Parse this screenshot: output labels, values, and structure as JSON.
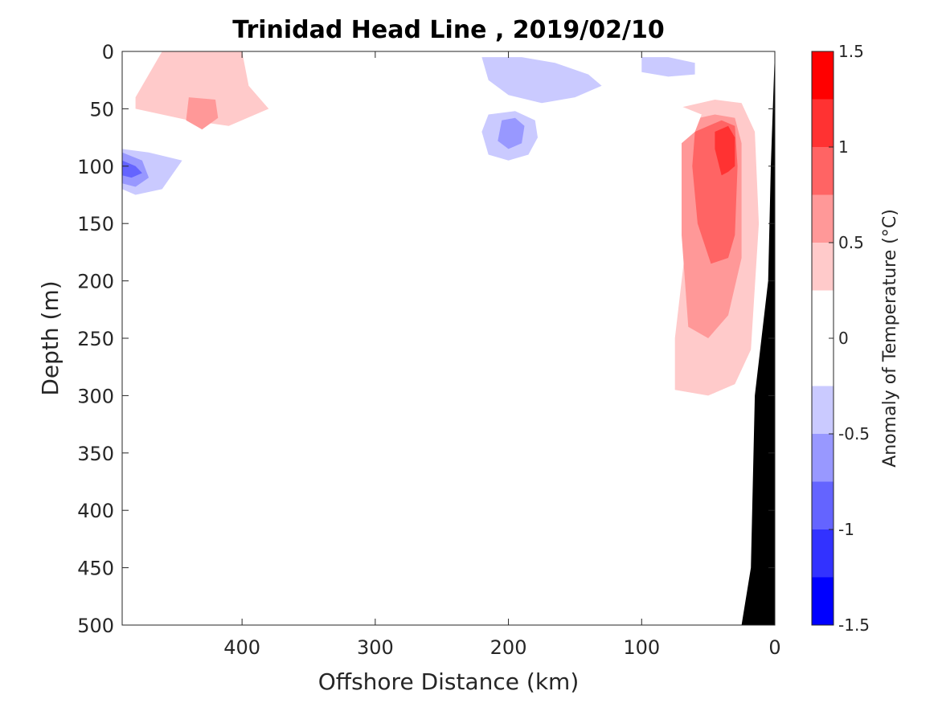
{
  "chart_data": {
    "type": "heatmap",
    "title": "Trinidad Head Line , 2019/02/10",
    "xlabel": "Offshore Distance (km)",
    "ylabel": "Depth (m)",
    "xlim": [
      490,
      0
    ],
    "ylim": [
      0,
      500
    ],
    "x_reversed": true,
    "y_reversed": true,
    "x_ticks": [
      "400",
      "300",
      "200",
      "100",
      "0"
    ],
    "x_tick_values": [
      400,
      300,
      200,
      100,
      0
    ],
    "y_ticks": [
      "0",
      "50",
      "100",
      "150",
      "200",
      "250",
      "300",
      "350",
      "400",
      "450",
      "500"
    ],
    "y_tick_values": [
      0,
      50,
      100,
      150,
      200,
      250,
      300,
      350,
      400,
      450,
      500
    ],
    "colorbar": {
      "label": "Anomaly of Temperature (°C)",
      "range": [
        -1.5,
        1.5
      ],
      "ticks": [
        "1.5",
        "1",
        "0.5",
        "0",
        "-0.5",
        "-1",
        "-1.5"
      ],
      "tick_values": [
        1.5,
        1,
        0.5,
        0,
        -0.5,
        -1,
        -1.5
      ],
      "levels": [
        -1.5,
        -1.25,
        -1.0,
        -0.75,
        -0.5,
        -0.25,
        0.25,
        0.5,
        0.75,
        1.0,
        1.25,
        1.5
      ],
      "colors": [
        "#0000ff",
        "#3232ff",
        "#6464ff",
        "#9898ff",
        "#cacaff",
        "#ffffff",
        "#ffcaca",
        "#ff9898",
        "#ff6464",
        "#ff3232",
        "#ff0000"
      ]
    },
    "anomaly_regions": [
      {
        "level": 0.25,
        "polygon": [
          [
            490,
            0
          ],
          [
            400,
            0
          ],
          [
            390,
            20
          ],
          [
            370,
            40
          ],
          [
            330,
            50
          ],
          [
            300,
            55
          ],
          [
            290,
            75
          ],
          [
            310,
            80
          ],
          [
            340,
            75
          ],
          [
            380,
            78
          ],
          [
            420,
            80
          ],
          [
            460,
            78
          ],
          [
            490,
            70
          ]
        ]
      },
      {
        "level": 0.5,
        "polygon": [
          [
            460,
            0
          ],
          [
            400,
            0
          ],
          [
            395,
            30
          ],
          [
            380,
            50
          ],
          [
            410,
            65
          ],
          [
            440,
            60
          ],
          [
            480,
            50
          ],
          [
            480,
            40
          ]
        ]
      },
      {
        "level": 0.75,
        "polygon": [
          [
            440,
            40
          ],
          [
            420,
            42
          ],
          [
            418,
            58
          ],
          [
            430,
            68
          ],
          [
            442,
            60
          ]
        ]
      },
      {
        "level": 0.25,
        "polygon": [
          [
            290,
            40
          ],
          [
            280,
            35
          ],
          [
            265,
            45
          ],
          [
            275,
            60
          ],
          [
            290,
            55
          ]
        ]
      },
      {
        "level": 0.25,
        "polygon": [
          [
            340,
            160
          ],
          [
            330,
            155
          ],
          [
            322,
            160
          ],
          [
            318,
            190
          ],
          [
            330,
            230
          ],
          [
            340,
            235
          ],
          [
            345,
            200
          ]
        ]
      },
      {
        "level": 0.25,
        "polygon": [
          [
            160,
            60
          ],
          [
            120,
            55
          ],
          [
            70,
            45
          ],
          [
            35,
            38
          ],
          [
            25,
            40
          ],
          [
            10,
            80
          ],
          [
            8,
            150
          ],
          [
            10,
            250
          ],
          [
            20,
            280
          ],
          [
            40,
            300
          ],
          [
            60,
            350
          ],
          [
            80,
            360
          ],
          [
            100,
            375
          ],
          [
            130,
            380
          ],
          [
            150,
            400
          ],
          [
            155,
            440
          ],
          [
            160,
            470
          ],
          [
            175,
            500
          ],
          [
            180,
            500
          ],
          [
            190,
            500
          ],
          [
            195,
            480
          ],
          [
            195,
            400
          ],
          [
            190,
            320
          ],
          [
            185,
            280
          ],
          [
            175,
            230
          ],
          [
            160,
            160
          ],
          [
            170,
            140
          ],
          [
            165,
            110
          ],
          [
            150,
            95
          ]
        ]
      },
      {
        "level": 0.5,
        "polygon": [
          [
            130,
            75
          ],
          [
            115,
            70
          ],
          [
            105,
            80
          ],
          [
            108,
            100
          ],
          [
            120,
            110
          ],
          [
            135,
            100
          ]
        ]
      },
      {
        "level": 0.5,
        "polygon": [
          [
            75,
            50
          ],
          [
            45,
            42
          ],
          [
            25,
            45
          ],
          [
            15,
            70
          ],
          [
            12,
            150
          ],
          [
            18,
            260
          ],
          [
            30,
            290
          ],
          [
            50,
            300
          ],
          [
            75,
            295
          ],
          [
            75,
            250
          ],
          [
            65,
            150
          ],
          [
            70,
            80
          ]
        ]
      },
      {
        "level": 0.75,
        "polygon": [
          [
            65,
            60
          ],
          [
            45,
            55
          ],
          [
            30,
            58
          ],
          [
            25,
            80
          ],
          [
            25,
            180
          ],
          [
            35,
            230
          ],
          [
            50,
            250
          ],
          [
            65,
            240
          ],
          [
            70,
            160
          ],
          [
            70,
            80
          ]
        ]
      },
      {
        "level": 1.0,
        "polygon": [
          [
            60,
            70
          ],
          [
            40,
            60
          ],
          [
            30,
            65
          ],
          [
            28,
            100
          ],
          [
            30,
            160
          ],
          [
            35,
            180
          ],
          [
            48,
            185
          ],
          [
            58,
            150
          ],
          [
            62,
            100
          ]
        ]
      },
      {
        "level": 1.25,
        "polygon": [
          [
            45,
            70
          ],
          [
            35,
            65
          ],
          [
            30,
            75
          ],
          [
            30,
            100
          ],
          [
            35,
            105
          ],
          [
            40,
            108
          ],
          [
            45,
            85
          ]
        ]
      },
      {
        "level": -0.25,
        "polygon": [
          [
            490,
            80
          ],
          [
            470,
            82
          ],
          [
            440,
            88
          ],
          [
            420,
            95
          ],
          [
            440,
            110
          ],
          [
            460,
            130
          ],
          [
            480,
            140
          ],
          [
            490,
            140
          ]
        ]
      },
      {
        "level": -0.5,
        "polygon": [
          [
            490,
            85
          ],
          [
            470,
            88
          ],
          [
            445,
            95
          ],
          [
            460,
            120
          ],
          [
            480,
            125
          ],
          [
            490,
            120
          ]
        ]
      },
      {
        "level": -0.75,
        "polygon": [
          [
            490,
            88
          ],
          [
            475,
            95
          ],
          [
            470,
            110
          ],
          [
            480,
            118
          ],
          [
            490,
            115
          ]
        ]
      },
      {
        "level": -1.0,
        "polygon": [
          [
            490,
            95
          ],
          [
            480,
            100
          ],
          [
            475,
            106
          ],
          [
            483,
            110
          ],
          [
            490,
            108
          ]
        ]
      },
      {
        "level": -0.25,
        "polygon": [
          [
            320,
            5
          ],
          [
            310,
            5
          ],
          [
            305,
            15
          ],
          [
            310,
            22
          ],
          [
            318,
            20
          ]
        ]
      },
      {
        "level": -0.25,
        "polygon": [
          [
            230,
            0
          ],
          [
            160,
            0
          ],
          [
            140,
            0
          ],
          [
            100,
            0
          ],
          [
            60,
            0
          ],
          [
            20,
            0
          ],
          [
            5,
            0
          ],
          [
            8,
            20
          ],
          [
            20,
            30
          ],
          [
            60,
            40
          ],
          [
            100,
            45
          ],
          [
            130,
            50
          ],
          [
            155,
            55
          ],
          [
            180,
            65
          ],
          [
            185,
            80
          ],
          [
            175,
            95
          ],
          [
            160,
            108
          ],
          [
            140,
            115
          ],
          [
            120,
            118
          ],
          [
            100,
            112
          ],
          [
            90,
            100
          ],
          [
            80,
            90
          ],
          [
            70,
            80
          ],
          [
            60,
            70
          ],
          [
            55,
            55
          ],
          [
            70,
            48
          ],
          [
            100,
            45
          ],
          [
            130,
            48
          ],
          [
            160,
            50
          ],
          [
            170,
            48
          ],
          [
            180,
            40
          ],
          [
            200,
            35
          ],
          [
            220,
            30
          ],
          [
            230,
            20
          ]
        ]
      },
      {
        "level": -0.5,
        "polygon": [
          [
            220,
            5
          ],
          [
            190,
            5
          ],
          [
            165,
            10
          ],
          [
            140,
            20
          ],
          [
            130,
            30
          ],
          [
            150,
            40
          ],
          [
            175,
            45
          ],
          [
            200,
            38
          ],
          [
            215,
            25
          ]
        ]
      },
      {
        "level": -0.5,
        "polygon": [
          [
            100,
            5
          ],
          [
            80,
            5
          ],
          [
            60,
            10
          ],
          [
            60,
            20
          ],
          [
            80,
            22
          ],
          [
            100,
            18
          ]
        ]
      },
      {
        "level": -0.5,
        "polygon": [
          [
            215,
            55
          ],
          [
            195,
            52
          ],
          [
            180,
            60
          ],
          [
            178,
            75
          ],
          [
            185,
            90
          ],
          [
            200,
            95
          ],
          [
            215,
            90
          ],
          [
            220,
            70
          ]
        ]
      },
      {
        "level": -0.75,
        "polygon": [
          [
            205,
            60
          ],
          [
            195,
            58
          ],
          [
            188,
            65
          ],
          [
            190,
            80
          ],
          [
            200,
            85
          ],
          [
            208,
            78
          ]
        ]
      }
    ],
    "bathymetry": {
      "color": "#000000",
      "polygon": [
        [
          0,
          0
        ],
        [
          0,
          500
        ],
        [
          25,
          500
        ],
        [
          18,
          450
        ],
        [
          15,
          300
        ],
        [
          5,
          200
        ],
        [
          3,
          100
        ],
        [
          0,
          0
        ]
      ]
    }
  }
}
